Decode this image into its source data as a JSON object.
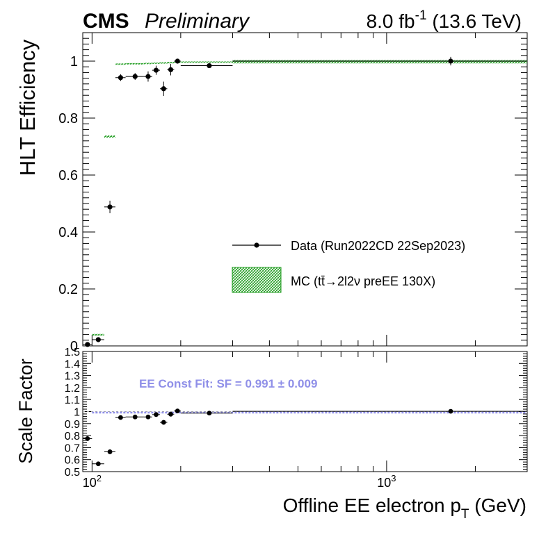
{
  "header": {
    "experiment": "CMS",
    "status": "Preliminary",
    "lumi_value": "8.0 fb",
    "lumi_exp": "-1",
    "energy": " (13.6 TeV)"
  },
  "colors": {
    "data": "#000000",
    "mc": "#1a9a1a",
    "fit": "#8f8fe8",
    "unity": "#aaaaaa"
  },
  "chart_data": [
    {
      "type": "scatter",
      "panel": "efficiency",
      "ylabel": "HLT Efficiency",
      "xscale": "log",
      "xlim": [
        93,
        3000
      ],
      "ylim": [
        0,
        1.1
      ],
      "y_ticks": [
        "0",
        "0.2",
        "0.4",
        "0.6",
        "0.8",
        "1"
      ],
      "legend": {
        "placement": "center-right",
        "entries": [
          {
            "label": "Data (Run2022CD 22Sep2023)",
            "style": "marker"
          },
          {
            "label": "MC (tt̄→2l2ν preEE 130X)",
            "style": "band"
          }
        ]
      },
      "series": [
        {
          "name": "Data (Run2022CD 22Sep2023)",
          "points": [
            {
              "x": 96.5,
              "xlo": 93,
              "xhi": 100,
              "y": 0.005,
              "err": 0.003
            },
            {
              "x": 105,
              "xlo": 100,
              "xhi": 110,
              "y": 0.022,
              "err": 0.006
            },
            {
              "x": 115,
              "xlo": 110,
              "xhi": 120,
              "y": 0.488,
              "err": 0.022
            },
            {
              "x": 125,
              "xlo": 120,
              "xhi": 130,
              "y": 0.942,
              "err": 0.012
            },
            {
              "x": 140,
              "xlo": 130,
              "xhi": 150,
              "y": 0.946,
              "err": 0.012
            },
            {
              "x": 155,
              "xlo": 150,
              "xhi": 160,
              "y": 0.946,
              "err": 0.018
            },
            {
              "x": 165,
              "xlo": 160,
              "xhi": 170,
              "y": 0.968,
              "err": 0.016
            },
            {
              "x": 175,
              "xlo": 170,
              "xhi": 180,
              "y": 0.903,
              "err": 0.025
            },
            {
              "x": 185,
              "xlo": 180,
              "xhi": 190,
              "y": 0.97,
              "err": 0.02
            },
            {
              "x": 195,
              "xlo": 190,
              "xhi": 200,
              "y": 1.0,
              "err": 0.008
            },
            {
              "x": 250,
              "xlo": 200,
              "xhi": 300,
              "y": 0.984,
              "err": 0.005
            },
            {
              "x": 1650,
              "xlo": 300,
              "xhi": 3000,
              "y": 1.0,
              "err": 0.015
            }
          ]
        },
        {
          "name": "MC (tt̄→2l2ν preEE 130X)",
          "points": [
            {
              "xlo": 100,
              "xhi": 110,
              "y": 0.039,
              "err": 0.003
            },
            {
              "xlo": 110,
              "xhi": 120,
              "y": 0.735,
              "err": 0.004
            },
            {
              "xlo": 120,
              "xhi": 130,
              "y": 0.99,
              "err": 0.002
            },
            {
              "xlo": 130,
              "xhi": 150,
              "y": 0.991,
              "err": 0.002
            },
            {
              "xlo": 150,
              "xhi": 160,
              "y": 0.992,
              "err": 0.002
            },
            {
              "xlo": 160,
              "xhi": 170,
              "y": 0.993,
              "err": 0.002
            },
            {
              "xlo": 170,
              "xhi": 180,
              "y": 0.994,
              "err": 0.002
            },
            {
              "xlo": 180,
              "xhi": 190,
              "y": 0.995,
              "err": 0.002
            },
            {
              "xlo": 190,
              "xhi": 200,
              "y": 0.996,
              "err": 0.002
            },
            {
              "xlo": 200,
              "xhi": 300,
              "y": 0.997,
              "err": 0.002
            },
            {
              "xlo": 300,
              "xhi": 3000,
              "y": 0.998,
              "err": 0.006
            }
          ]
        }
      ]
    },
    {
      "type": "scatter",
      "panel": "scale_factor",
      "ylabel": "Scale Factor",
      "xlabel_main": "Offline EE electron p",
      "xlabel_sub": "T",
      "xlabel_unit": " (GeV)",
      "xscale": "log",
      "xlim": [
        93,
        3000
      ],
      "ylim": [
        0.5,
        1.5
      ],
      "y_ticks": [
        "0.5",
        "0.6",
        "0.7",
        "0.8",
        "0.9",
        "1",
        "1.1",
        "1.2",
        "1.3",
        "1.4",
        "1.5"
      ],
      "x_tick_labels": [
        {
          "base": "10",
          "exp": "2",
          "value": 100
        },
        {
          "base": "10",
          "exp": "3",
          "value": 1000
        }
      ],
      "fit_annotation": "EE Const Fit: SF = 0.991 ± 0.009",
      "fit_value": 0.991,
      "unity": 1.0,
      "series": [
        {
          "name": "SF",
          "points": [
            {
              "x": 96.5,
              "xlo": 93,
              "xhi": 100,
              "y": 0.775,
              "err": 0.01
            },
            {
              "x": 105,
              "xlo": 100,
              "xhi": 110,
              "y": 0.565,
              "err": 0.01
            },
            {
              "x": 115,
              "xlo": 110,
              "xhi": 120,
              "y": 0.665,
              "err": 0.01
            },
            {
              "x": 125,
              "xlo": 120,
              "xhi": 130,
              "y": 0.95,
              "err": 0.01
            },
            {
              "x": 140,
              "xlo": 130,
              "xhi": 150,
              "y": 0.955,
              "err": 0.01
            },
            {
              "x": 155,
              "xlo": 150,
              "xhi": 160,
              "y": 0.955,
              "err": 0.01
            },
            {
              "x": 165,
              "xlo": 160,
              "xhi": 170,
              "y": 0.975,
              "err": 0.01
            },
            {
              "x": 175,
              "xlo": 170,
              "xhi": 180,
              "y": 0.91,
              "err": 0.01
            },
            {
              "x": 185,
              "xlo": 180,
              "xhi": 190,
              "y": 0.978,
              "err": 0.01
            },
            {
              "x": 195,
              "xlo": 190,
              "xhi": 200,
              "y": 1.005,
              "err": 0.01
            },
            {
              "x": 250,
              "xlo": 200,
              "xhi": 300,
              "y": 0.987,
              "err": 0.005
            },
            {
              "x": 1650,
              "xlo": 300,
              "xhi": 3000,
              "y": 1.002,
              "err": 0.008
            }
          ]
        }
      ]
    }
  ]
}
